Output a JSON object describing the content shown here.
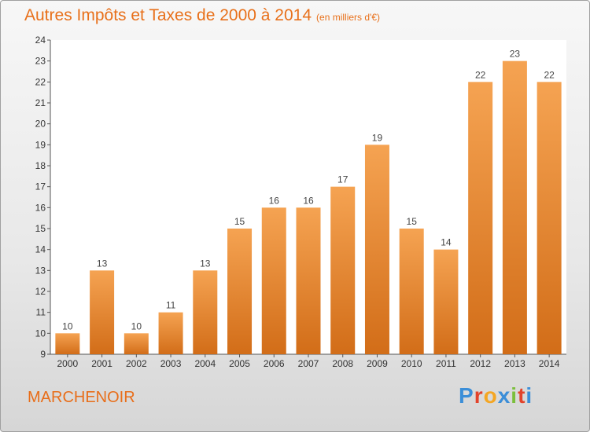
{
  "header": {
    "title": "Autres Impôts et Taxes de 2000 à 2014",
    "unit": "(en milliers d'€)"
  },
  "footer": {
    "town": "MARCHENOIR",
    "logo": "Proxiti",
    "logo_letters": [
      "P",
      "r",
      "o",
      "x",
      "i",
      "t",
      "i"
    ],
    "logo_colors": [
      "#3b8ed8",
      "#e2432b",
      "#f4a623",
      "#3b8ed8",
      "#7bbf3c",
      "#e2432b",
      "#3b8ed8"
    ]
  },
  "colors": {
    "title": "#e8701a",
    "bar_top": "#f5a352",
    "bar_bottom": "#d26d18"
  },
  "chart_data": {
    "type": "bar",
    "title": "Autres Impôts et Taxes de 2000 à 2014",
    "categories": [
      "2000",
      "2001",
      "2002",
      "2003",
      "2004",
      "2005",
      "2006",
      "2007",
      "2008",
      "2009",
      "2010",
      "2011",
      "2012",
      "2013",
      "2014"
    ],
    "values": [
      10,
      13,
      10,
      11,
      13,
      15,
      16,
      16,
      17,
      19,
      15,
      14,
      22,
      23,
      22
    ],
    "ylim": [
      9,
      24
    ],
    "yticks": [
      9,
      10,
      11,
      12,
      13,
      14,
      15,
      16,
      17,
      18,
      19,
      20,
      21,
      22,
      23,
      24
    ],
    "grid": false,
    "legend": "none"
  }
}
